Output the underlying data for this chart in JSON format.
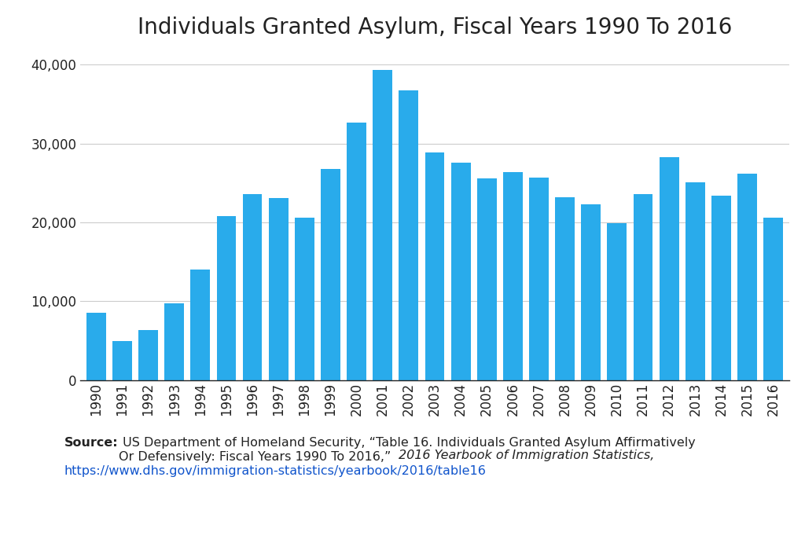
{
  "title": "Individuals Granted Asylum, Fiscal Years 1990 To 2016",
  "years": [
    1990,
    1991,
    1992,
    1993,
    1994,
    1995,
    1996,
    1997,
    1998,
    1999,
    2000,
    2001,
    2002,
    2003,
    2004,
    2005,
    2006,
    2007,
    2008,
    2009,
    2010,
    2011,
    2012,
    2013,
    2014,
    2015,
    2016
  ],
  "values": [
    8500,
    5000,
    6300,
    9700,
    14000,
    20800,
    23600,
    23100,
    20600,
    26800,
    32700,
    39300,
    36700,
    28900,
    27600,
    25600,
    26400,
    25700,
    23200,
    22300,
    19900,
    23600,
    28300,
    25100,
    23400,
    26200,
    20600
  ],
  "bar_color": "#29ABEB",
  "background_color": "#FFFFFF",
  "ylim": [
    0,
    42000
  ],
  "yticks": [
    0,
    10000,
    20000,
    30000,
    40000
  ],
  "ytick_labels": [
    "0",
    "10,000",
    "20,000",
    "30,000",
    "40,000"
  ],
  "grid_color": "#CCCCCC",
  "title_fontsize": 20,
  "tick_fontsize": 12,
  "source_fontsize": 11.5
}
